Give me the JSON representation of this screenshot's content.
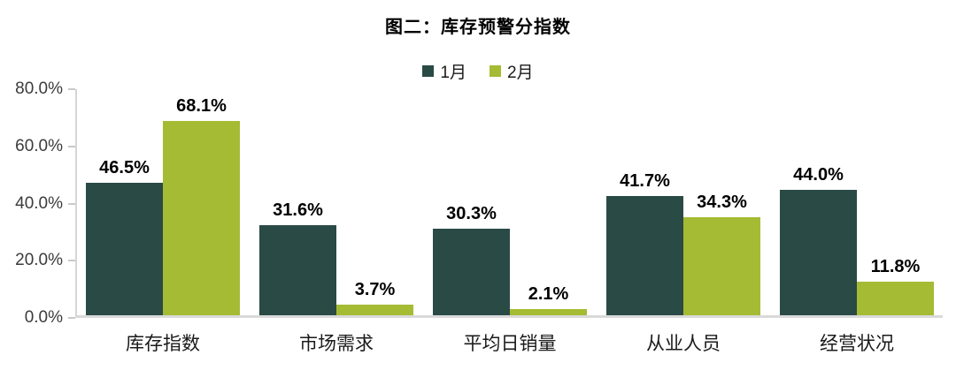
{
  "chart_data": {
    "type": "bar",
    "title": "图二：库存预警分指数",
    "categories": [
      "库存指数",
      "市场需求",
      "平均日销量",
      "从业人员",
      "经营状况"
    ],
    "series": [
      {
        "name": "1月",
        "color": "#2A4A46",
        "values": [
          46.5,
          31.6,
          30.3,
          41.7,
          44.0
        ],
        "labels": [
          "46.5%",
          "31.6%",
          "30.3%",
          "41.7%",
          "44.0%"
        ]
      },
      {
        "name": "2月",
        "color": "#A4BB33",
        "values": [
          68.1,
          3.7,
          2.1,
          34.3,
          11.8
        ],
        "labels": [
          "68.1%",
          "3.7%",
          "2.1%",
          "34.3%",
          "11.8%"
        ]
      }
    ],
    "xlabel": "",
    "ylabel": "",
    "ylim": [
      0,
      80
    ],
    "y_ticks": [
      "80.0%",
      "60.0%",
      "40.0%",
      "20.0%",
      "0.0%"
    ],
    "grid": false,
    "legend_position": "top",
    "axis_color": "#d9d9d9",
    "tick_color": "#c9c9c9",
    "value_label_color": "#000000",
    "background": "#ffffff"
  }
}
